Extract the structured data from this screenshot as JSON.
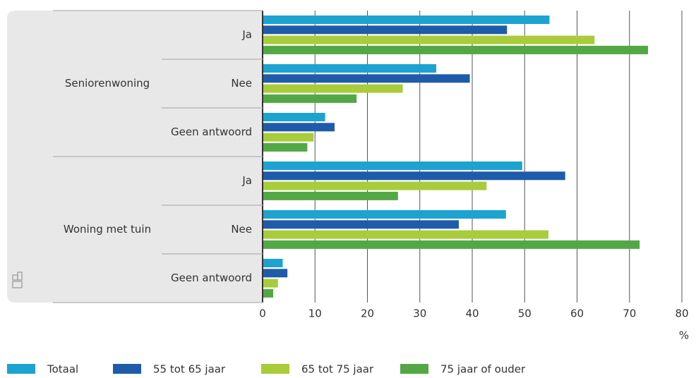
{
  "chart_data": {
    "type": "bar",
    "orientation": "horizontal",
    "groups": [
      {
        "name": "Seniorenwoning",
        "categories": [
          "Ja",
          "Nee",
          "Geen antwoord"
        ]
      },
      {
        "name": "Woning met tuin",
        "categories": [
          "Ja",
          "Nee",
          "Geen antwoord"
        ]
      }
    ],
    "series": [
      {
        "name": "Totaal",
        "color": "#1ca3d0",
        "values": [
          54.6,
          33.0,
          11.8,
          49.4,
          46.3,
          3.7
        ]
      },
      {
        "name": "55 tot 65 jaar",
        "color": "#1f5bab",
        "values": [
          46.5,
          39.4,
          13.6,
          57.6,
          37.3,
          4.6
        ]
      },
      {
        "name": "65 tot 75 jaar",
        "color": "#a8cc3a",
        "values": [
          63.2,
          26.6,
          9.6,
          42.6,
          54.4,
          2.8
        ]
      },
      {
        "name": "75 jaar of ouder",
        "color": "#53a845",
        "values": [
          73.4,
          17.8,
          8.4,
          25.7,
          71.8,
          1.9
        ]
      }
    ],
    "x_label": "%",
    "xlim": [
      0,
      80
    ],
    "xticks": [
      0,
      10,
      20,
      30,
      40,
      50,
      60,
      70,
      80
    ],
    "grid": true
  }
}
